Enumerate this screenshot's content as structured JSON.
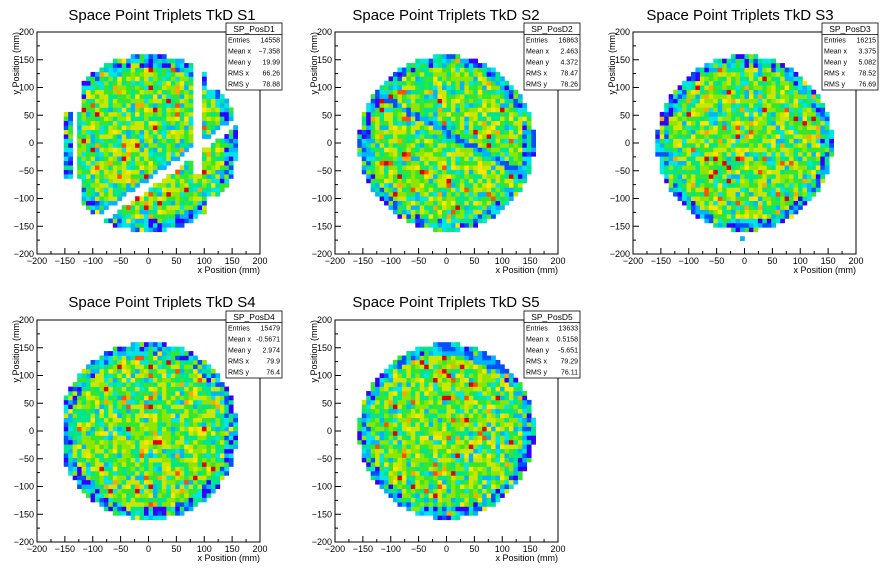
{
  "colors": {
    "palette": [
      "#3300ff",
      "#0050ff",
      "#00b4ff",
      "#00e6e6",
      "#00e68c",
      "#32e632",
      "#8ce600",
      "#cce600",
      "#ffe600",
      "#ffa500",
      "#ff5000",
      "#e60000"
    ],
    "frame": "#000000",
    "background": "#ffffff"
  },
  "chart_data": [
    {
      "type": "heatmap",
      "id": "s1",
      "title": "Space Point Triplets TkD S1",
      "xlabel": "x Position (mm)",
      "ylabel": "y Position (mm)",
      "xlim": [
        -200,
        200
      ],
      "ylim": [
        -200,
        200
      ],
      "xticks": [
        -200,
        -150,
        -100,
        -50,
        0,
        50,
        100,
        150,
        200
      ],
      "yticks": [
        -200,
        -150,
        -100,
        -50,
        0,
        50,
        100,
        150,
        200
      ],
      "stats": {
        "name": "SP_PosD1",
        "rows": [
          {
            "label": "Entries",
            "value": "14558"
          },
          {
            "label": "Mean x",
            "value": "−7.358"
          },
          {
            "label": "Mean y",
            "value": "19.99"
          },
          {
            "label": "RMS x",
            "value": "66.26"
          },
          {
            "label": "RMS y",
            "value": "78.88"
          }
        ]
      }
    },
    {
      "type": "heatmap",
      "id": "s2",
      "title": "Space Point Triplets TkD S2",
      "xlabel": "x Position (mm)",
      "ylabel": "y Position (mm)",
      "xlim": [
        -200,
        200
      ],
      "ylim": [
        -200,
        200
      ],
      "xticks": [
        -200,
        -150,
        -100,
        -50,
        0,
        50,
        100,
        150,
        200
      ],
      "yticks": [
        -200,
        -150,
        -100,
        -50,
        0,
        50,
        100,
        150,
        200
      ],
      "stats": {
        "name": "SP_PosD2",
        "rows": [
          {
            "label": "Entries",
            "value": "16863"
          },
          {
            "label": "Mean x",
            "value": "2.463"
          },
          {
            "label": "Mean y",
            "value": "4.372"
          },
          {
            "label": "RMS x",
            "value": "78.47"
          },
          {
            "label": "RMS y",
            "value": "78.26"
          }
        ]
      }
    },
    {
      "type": "heatmap",
      "id": "s3",
      "title": "Space Point Triplets TkD S3",
      "xlabel": "x Position (mm)",
      "ylabel": "y Position (mm)",
      "xlim": [
        -200,
        200
      ],
      "ylim": [
        -200,
        200
      ],
      "xticks": [
        -200,
        -150,
        -100,
        -50,
        0,
        50,
        100,
        150,
        200
      ],
      "yticks": [
        -200,
        -150,
        -100,
        -50,
        0,
        50,
        100,
        150,
        200
      ],
      "stats": {
        "name": "SP_PosD3",
        "rows": [
          {
            "label": "Entries",
            "value": "16215"
          },
          {
            "label": "Mean x",
            "value": "3.375"
          },
          {
            "label": "Mean y",
            "value": "5.082"
          },
          {
            "label": "RMS x",
            "value": "78.52"
          },
          {
            "label": "RMS y",
            "value": "76.69"
          }
        ]
      }
    },
    {
      "type": "heatmap",
      "id": "s4",
      "title": "Space Point Triplets TkD S4",
      "xlabel": "x Position (mm)",
      "ylabel": "y Position (mm)",
      "xlim": [
        -200,
        200
      ],
      "ylim": [
        -200,
        200
      ],
      "xticks": [
        -200,
        -150,
        -100,
        -50,
        0,
        50,
        100,
        150,
        200
      ],
      "yticks": [
        -200,
        -150,
        -100,
        -50,
        0,
        50,
        100,
        150,
        200
      ],
      "stats": {
        "name": "SP_PosD4",
        "rows": [
          {
            "label": "Entries",
            "value": "15479"
          },
          {
            "label": "Mean x",
            "value": "-0.5671"
          },
          {
            "label": "Mean y",
            "value": "2.974"
          },
          {
            "label": "RMS x",
            "value": "79.9"
          },
          {
            "label": "RMS y",
            "value": "76.4"
          }
        ]
      }
    },
    {
      "type": "heatmap",
      "id": "s5",
      "title": "Space Point Triplets TkD S5",
      "xlabel": "x Position (mm)",
      "ylabel": "y Position (mm)",
      "xlim": [
        -200,
        200
      ],
      "ylim": [
        -200,
        200
      ],
      "xticks": [
        -200,
        -150,
        -100,
        -50,
        0,
        50,
        100,
        150,
        200
      ],
      "yticks": [
        -200,
        -150,
        -100,
        -50,
        0,
        50,
        100,
        150,
        200
      ],
      "stats": {
        "name": "SP_PosD5",
        "rows": [
          {
            "label": "Entries",
            "value": "13633"
          },
          {
            "label": "Mean x",
            "value": "0.5158"
          },
          {
            "label": "Mean y",
            "value": "-5.651"
          },
          {
            "label": "RMS x",
            "value": "79.29"
          },
          {
            "label": "RMS y",
            "value": "76.11"
          }
        ]
      }
    }
  ]
}
